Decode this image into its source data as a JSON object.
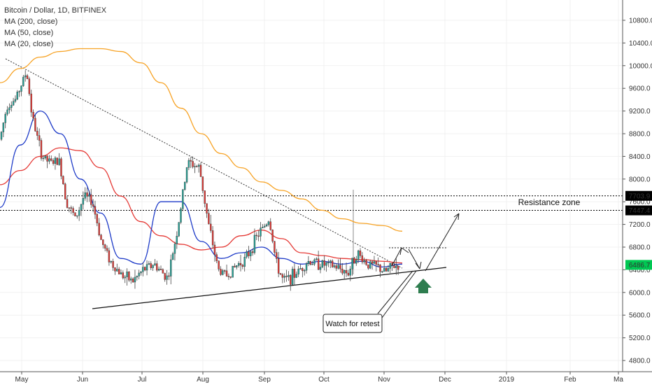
{
  "chart_data": {
    "type": "candlestick",
    "title": "Bitcoin / Dollar, 1D, BITFINEX",
    "indicators": [
      {
        "name": "MA (200, close)",
        "color": "#f7a325"
      },
      {
        "name": "MA (50, close)",
        "color": "#e53935"
      },
      {
        "name": "MA (20, close)",
        "color": "#1e3bc8"
      }
    ],
    "x_ticks": [
      "May",
      "Jun",
      "Jul",
      "Aug",
      "Sep",
      "Oct",
      "Nov",
      "Dec",
      "2019",
      "Feb",
      "Ma"
    ],
    "y_ticks": [
      "10800.0",
      "10400.0",
      "10000.0",
      "9600.0",
      "9200.0",
      "8800.0",
      "8400.0",
      "8000.0",
      "7600.0",
      "7200.0",
      "6800.0",
      "6400.0",
      "6000.0",
      "5600.0",
      "5200.0",
      "4800.0"
    ],
    "ylim": [
      4700,
      11300
    ],
    "price_labels": [
      {
        "text": "7703.9",
        "value": 7703.9,
        "color": "#000000"
      },
      {
        "text": "7447.4",
        "value": 7447.4,
        "color": "#000000"
      },
      {
        "text": "6486.7",
        "value": 6486.7,
        "color": "#00c853"
      }
    ],
    "ma200_values": [
      9700,
      9950,
      10150,
      10250,
      10300,
      10300,
      10250,
      10050,
      9700,
      9250,
      8800,
      8450,
      8200,
      7950,
      7800,
      7650,
      7450,
      7300,
      7220,
      7180,
      7080
    ],
    "ma50_values": [
      7900,
      8150,
      8400,
      8550,
      8500,
      8200,
      7700,
      7250,
      7000,
      6850,
      6750,
      6800,
      7000,
      7100,
      6950,
      6700,
      6650,
      6600,
      6580,
      6550,
      6520
    ],
    "ma20_values": [
      7500,
      8600,
      9200,
      8800,
      8000,
      7400,
      6600,
      6500,
      7600,
      7600,
      6900,
      6600,
      6700,
      6800,
      6600,
      6500,
      6550,
      6500,
      6550,
      6450,
      6500
    ],
    "close_series": [
      9300,
      9500,
      8800,
      8400,
      8200,
      7600,
      7500,
      7400,
      6800,
      6300,
      6450,
      6300,
      6700,
      8200,
      7900,
      6300,
      6700,
      6400,
      7000,
      7000,
      6300,
      6500,
      6600,
      6400,
      6550,
      6600,
      6650,
      6500,
      6400,
      6550,
      6486.7
    ],
    "series_names": []
  },
  "annotations": {
    "resistance_label": "Resistance zone",
    "callout_text": "Watch for retest"
  },
  "colors": {
    "up_candle": "#26a69a",
    "down_candle": "#e53935",
    "axis_text": "#333333",
    "grid": "#eeeeee",
    "arrow_up": "#2e7d4f"
  }
}
